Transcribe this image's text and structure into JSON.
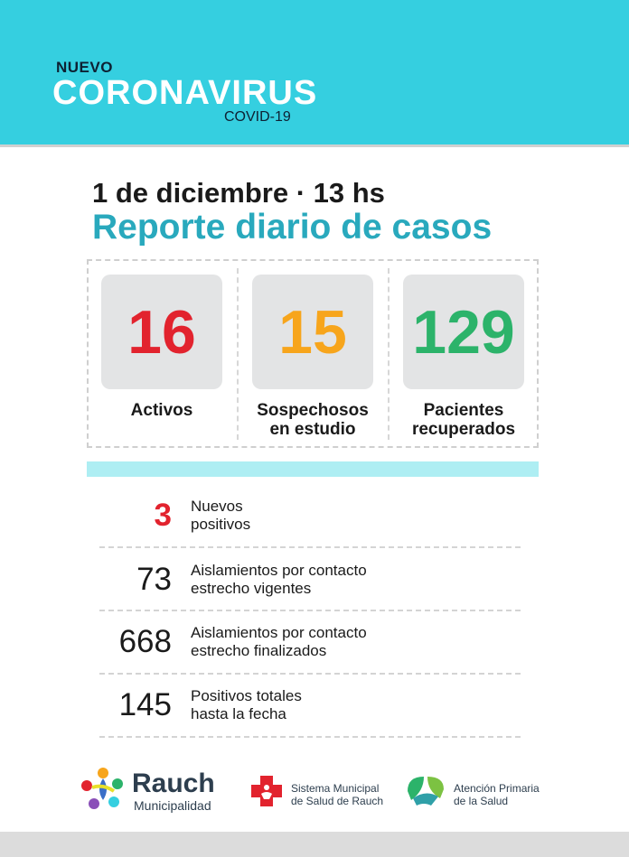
{
  "header": {
    "kicker": "NUEVO",
    "title": "CORONAVIRUS",
    "subtitle": "COVID-19"
  },
  "report": {
    "date": "1 de diciembre · 13 hs",
    "title": "Reporte diario de casos"
  },
  "stats": [
    {
      "value": "16",
      "label_line1": "Activos",
      "label_line2": "",
      "color": "#e2232e"
    },
    {
      "value": "15",
      "label_line1": "Sospechosos",
      "label_line2": "en estudio",
      "color": "#f7a51c"
    },
    {
      "value": "129",
      "label_line1": "Pacientes",
      "label_line2": "recuperados",
      "color": "#2cb36a"
    }
  ],
  "rows": [
    {
      "value": "3",
      "line1": "Nuevos",
      "line2": "positivos",
      "color": "#e2232e"
    },
    {
      "value": "73",
      "line1": "Aislamientos por contacto",
      "line2": "estrecho vigentes",
      "color": "#1a1a1a"
    },
    {
      "value": "668",
      "line1": "Aislamientos por contacto",
      "line2": "estrecho finalizados",
      "color": "#1a1a1a"
    },
    {
      "value": "145",
      "line1": "Positivos totales",
      "line2": "hasta la fecha",
      "color": "#1a1a1a"
    }
  ],
  "footer": {
    "rauch_name": "Rauch",
    "rauch_sub": "Municipalidad",
    "sm_line1": "Sistema Municipal",
    "sm_line2": "de Salud de Rauch",
    "ap_line1": "Atención Primaria",
    "ap_line2": "de la Salud"
  },
  "colors": {
    "banner": "#35cfe0",
    "title": "#29a9bd",
    "active": "#e2232e",
    "suspect": "#f7a51c",
    "recovered": "#2cb36a"
  }
}
